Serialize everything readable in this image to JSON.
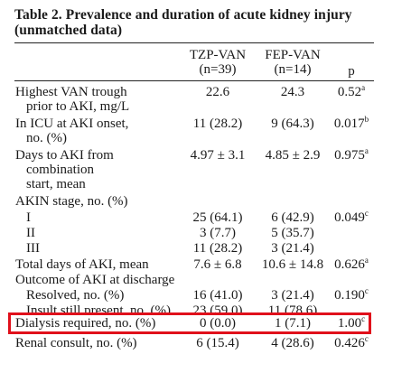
{
  "title": "Table 2.  Prevalence and duration of acute kidney injury (unmatched data)",
  "columns": {
    "c1_name": "TZP-VAN",
    "c1_n": "(n=39)",
    "c2_name": "FEP-VAN",
    "c2_n": "(n=14)",
    "c3_name": "p"
  },
  "rows": [
    {
      "label": "Highest VAN trough",
      "label2": "prior to AKI, mg/L",
      "v1": "22.6",
      "v2": "24.3",
      "p": "0.52",
      "sup": "a"
    },
    {
      "label": "In ICU at AKI onset,",
      "label2": "no. (%)",
      "v1": "11 (28.2)",
      "v2": "9 (64.3)",
      "p": "0.017",
      "sup": "b"
    },
    {
      "label": "Days to AKI from",
      "label2": "combination",
      "label3": "start, mean",
      "v1": "4.97 ± 3.1",
      "v2": "4.85 ± 2.9",
      "p": "0.975",
      "sup": "a"
    },
    {
      "label": "AKIN stage, no. (%)"
    },
    {
      "label": "I",
      "v1": "25 (64.1)",
      "v2": "6 (42.9)",
      "p": "0.049",
      "sup": "c"
    },
    {
      "label": "II",
      "v1": "3 (7.7)",
      "v2": "5 (35.7)"
    },
    {
      "label": "III",
      "v1": "11 (28.2)",
      "v2": "3 (21.4)"
    },
    {
      "label": "Total days of AKI, mean",
      "v1": "7.6 ± 6.8",
      "v2": "10.6 ± 14.8",
      "p": "0.626",
      "sup": "a"
    },
    {
      "label": "Outcome of AKI at discharge"
    },
    {
      "label": "Resolved, no. (%)",
      "v1": "16 (41.0)",
      "v2": "3 (21.4)",
      "p": "0.190",
      "sup": "c"
    },
    {
      "label": "Insult still present, no. (%)",
      "v1": "23 (59.0)",
      "v2": "11 (78.6)"
    },
    {
      "label": "Dialysis required, no. (%)",
      "v1": "0 (0.0)",
      "v2": "1 (7.1)",
      "p": "1.00",
      "sup": "c"
    },
    {
      "label": "Renal consult, no. (%)",
      "v1": "6 (15.4)",
      "v2": "4 (28.6)",
      "p": "0.426",
      "sup": "c"
    }
  ],
  "highlight_color": "#e0101b"
}
